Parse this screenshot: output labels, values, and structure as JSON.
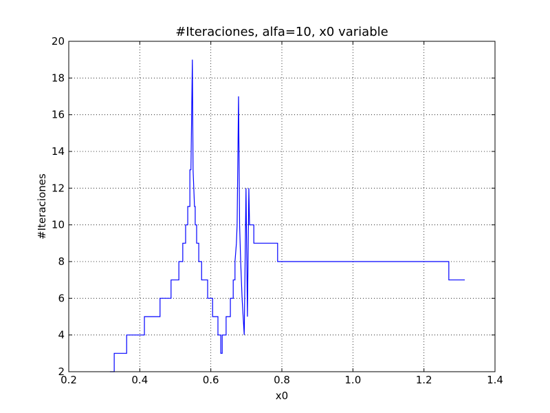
{
  "chart_data": {
    "type": "line",
    "title": "#Iteraciones, alfa=10, x0 variable",
    "xlabel": "x0",
    "ylabel": "#Iteraciones",
    "x": [
      0.316,
      0.328,
      0.328,
      0.363,
      0.363,
      0.413,
      0.413,
      0.457,
      0.457,
      0.488,
      0.488,
      0.51,
      0.51,
      0.521,
      0.521,
      0.529,
      0.529,
      0.535,
      0.535,
      0.541,
      0.541,
      0.544,
      0.548,
      0.55,
      0.554,
      0.556,
      0.556,
      0.56,
      0.56,
      0.566,
      0.566,
      0.574,
      0.574,
      0.591,
      0.591,
      0.605,
      0.605,
      0.62,
      0.62,
      0.628,
      0.628,
      0.632,
      0.632,
      0.643,
      0.643,
      0.655,
      0.655,
      0.663,
      0.663,
      0.668,
      0.668,
      0.672,
      0.674,
      0.678,
      0.681,
      0.684,
      0.688,
      0.694,
      0.699,
      0.703,
      0.707,
      0.709,
      0.721,
      0.721,
      0.788,
      0.788,
      1.27,
      1.27,
      1.315
    ],
    "series": [
      {
        "name": "#Iteraciones",
        "color": "#0000ff",
        "values": [
          2,
          2,
          3,
          3,
          4,
          4,
          5,
          5,
          6,
          6,
          7,
          7,
          8,
          8,
          9,
          9,
          10,
          10,
          11,
          11,
          13,
          13,
          19,
          13,
          11,
          11,
          10,
          10,
          9,
          9,
          8,
          8,
          7,
          7,
          6,
          6,
          5,
          5,
          4,
          4,
          3,
          3,
          4,
          4,
          5,
          5,
          6,
          6,
          7,
          7,
          8,
          9,
          10,
          17,
          10,
          8,
          6,
          4,
          12,
          5,
          12,
          10,
          10,
          9,
          9,
          8,
          8,
          7,
          7
        ]
      }
    ],
    "xlim": [
      0.2,
      1.4
    ],
    "ylim": [
      2,
      20
    ],
    "xticks": [
      0.2,
      0.4,
      0.6,
      0.8,
      {
        "value": 1,
        "label": "1.0"
      },
      1.2,
      1.4
    ],
    "yticks": [
      2,
      4,
      6,
      8,
      10,
      12,
      14,
      16,
      18,
      20
    ],
    "grid": true
  }
}
